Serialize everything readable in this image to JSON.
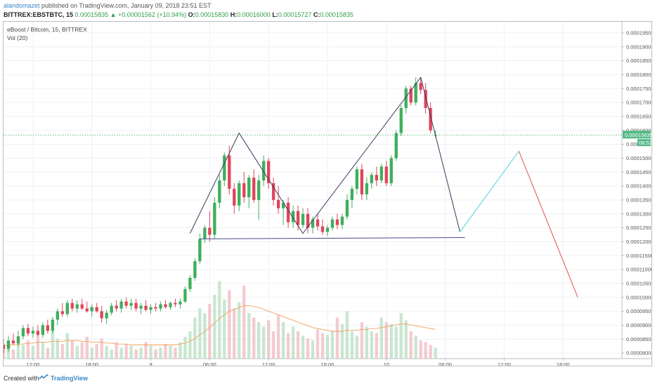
{
  "header": {
    "author": "alandomazet",
    "published_text": " published on TradingView.com, January 09, 2018 23:51 EST",
    "symbol": "BITTREX:EBSTBTC, 15",
    "last": "0.00015835",
    "change": "+0.00001562 (+10.94%)",
    "o_label": "O:",
    "o_value": "0.00015830",
    "h_label": "H:",
    "h_value": "0.00016000",
    "l_label": "L:",
    "l_value": "0.00015727",
    "c_label": "C:",
    "c_value": "0.00015835"
  },
  "legend": {
    "title": "eBoost / Bitcoin, 15, BITTREX",
    "vol": "Vol (20)"
  },
  "footer": {
    "created_with": "Created with",
    "brand": "TradingView"
  },
  "colors": {
    "up": "#26a69a",
    "up_body": "#3fae5c",
    "down": "#e0455b",
    "pattern_line": "#3a3a5c",
    "projection_up": "#5ed6e8",
    "projection_down": "#e06060",
    "price_line": "#2e9e4a",
    "ma_line": "#f0a060"
  },
  "chart_data": {
    "type": "candlestick",
    "price_axis": {
      "ticks": [
        8e-05,
        8.5e-05,
        9e-05,
        9.5e-05,
        0.0001,
        0.000105,
        0.00011,
        0.000115,
        0.00012,
        0.000125,
        0.00013,
        0.000135,
        0.00014,
        0.000145,
        0.00015,
        0.000155,
        0.00016,
        0.000165,
        0.00017,
        0.000175,
        0.00018,
        0.000185,
        0.00019,
        0.000195
      ],
      "tick_labels": [
        "0.00008000",
        "0.00008500",
        "0.00009000",
        "0.00009500",
        "0.00010000",
        "0.00010500",
        "0.00011000",
        "0.00011500",
        "0.00012000",
        "0.00012500",
        "0.00013000",
        "0.00013500",
        "0.00014000",
        "0.00014500",
        "0.00015000",
        "0.00015500",
        "0.00016000",
        "0.00016500",
        "0.00017000",
        "0.00017500",
        "0.00018000",
        "0.00018500",
        "0.00019000",
        "0.00019500"
      ],
      "range": [
        7.8e-05,
        0.000199
      ],
      "last_price": 0.00015835,
      "last_price_label": "0.00015835",
      "countdown_label": "08:52"
    },
    "time_axis": {
      "labels": [
        "12:00",
        "18:00",
        "9",
        "06:00",
        "12:00",
        "18:00",
        "10",
        "06:00",
        "12:00",
        "18:00"
      ],
      "positions": [
        12,
        18,
        24,
        30,
        36,
        42,
        48,
        54,
        60,
        66
      ],
      "range": [
        9,
        72
      ]
    },
    "candles": [
      {
        "t": 9.0,
        "o": 8.3e-05,
        "h": 8.5e-05,
        "l": 8e-05,
        "c": 8.15e-05
      },
      {
        "t": 9.5,
        "o": 8.15e-05,
        "h": 8.6e-05,
        "l": 8.05e-05,
        "c": 8.45e-05
      },
      {
        "t": 10.0,
        "o": 8.45e-05,
        "h": 8.7e-05,
        "l": 8.3e-05,
        "c": 8.35e-05
      },
      {
        "t": 10.5,
        "o": 8.35e-05,
        "h": 8.8e-05,
        "l": 8.25e-05,
        "c": 8.6e-05
      },
      {
        "t": 11.0,
        "o": 8.6e-05,
        "h": 9e-05,
        "l": 8.5e-05,
        "c": 8.9e-05
      },
      {
        "t": 11.5,
        "o": 8.9e-05,
        "h": 9.05e-05,
        "l": 8.6e-05,
        "c": 8.7e-05
      },
      {
        "t": 12.0,
        "o": 8.7e-05,
        "h": 8.95e-05,
        "l": 8.55e-05,
        "c": 8.8e-05
      },
      {
        "t": 12.5,
        "o": 8.8e-05,
        "h": 9e-05,
        "l": 8.6e-05,
        "c": 8.65e-05
      },
      {
        "t": 13.0,
        "o": 8.65e-05,
        "h": 9.1e-05,
        "l": 8.55e-05,
        "c": 9e-05
      },
      {
        "t": 13.5,
        "o": 9e-05,
        "h": 9.2e-05,
        "l": 8.7e-05,
        "c": 8.8e-05
      },
      {
        "t": 14.0,
        "o": 8.8e-05,
        "h": 9.3e-05,
        "l": 8.7e-05,
        "c": 9.2e-05
      },
      {
        "t": 14.5,
        "o": 9.2e-05,
        "h": 9.6e-05,
        "l": 9e-05,
        "c": 9.5e-05
      },
      {
        "t": 15.0,
        "o": 9.5e-05,
        "h": 9.8e-05,
        "l": 9.3e-05,
        "c": 9.4e-05
      },
      {
        "t": 15.5,
        "o": 9.4e-05,
        "h": 9.9e-05,
        "l": 9.3e-05,
        "c": 9.8e-05
      },
      {
        "t": 16.0,
        "o": 9.8e-05,
        "h": 9.95e-05,
        "l": 9.5e-05,
        "c": 9.6e-05
      },
      {
        "t": 16.5,
        "o": 9.6e-05,
        "h": 9.9e-05,
        "l": 9.45e-05,
        "c": 9.75e-05
      },
      {
        "t": 17.0,
        "o": 9.75e-05,
        "h": 9.95e-05,
        "l": 9.55e-05,
        "c": 9.6e-05
      },
      {
        "t": 17.5,
        "o": 9.6e-05,
        "h": 9.85e-05,
        "l": 9.45e-05,
        "c": 9.5e-05
      },
      {
        "t": 18.0,
        "o": 9.5e-05,
        "h": 9.75e-05,
        "l": 9.3e-05,
        "c": 9.65e-05
      },
      {
        "t": 18.5,
        "o": 9.65e-05,
        "h": 9.8e-05,
        "l": 9.45e-05,
        "c": 9.5e-05
      },
      {
        "t": 19.0,
        "o": 9.5e-05,
        "h": 9.7e-05,
        "l": 9.1e-05,
        "c": 9.25e-05
      },
      {
        "t": 19.5,
        "o": 9.25e-05,
        "h": 9.55e-05,
        "l": 9.05e-05,
        "c": 9.45e-05
      },
      {
        "t": 20.0,
        "o": 9.45e-05,
        "h": 9.8e-05,
        "l": 9.35e-05,
        "c": 9.7e-05
      },
      {
        "t": 20.5,
        "o": 9.7e-05,
        "h": 9.9e-05,
        "l": 9.5e-05,
        "c": 9.6e-05
      },
      {
        "t": 21.0,
        "o": 9.6e-05,
        "h": 9.95e-05,
        "l": 9.45e-05,
        "c": 9.85e-05
      },
      {
        "t": 21.5,
        "o": 9.85e-05,
        "h": 0.0001,
        "l": 9.6e-05,
        "c": 9.7e-05
      },
      {
        "t": 22.0,
        "o": 9.7e-05,
        "h": 9.95e-05,
        "l": 9.55e-05,
        "c": 9.8e-05
      },
      {
        "t": 22.5,
        "o": 9.8e-05,
        "h": 9.95e-05,
        "l": 9.5e-05,
        "c": 9.6e-05
      },
      {
        "t": 23.0,
        "o": 9.6e-05,
        "h": 9.8e-05,
        "l": 9.4e-05,
        "c": 9.7e-05
      },
      {
        "t": 23.5,
        "o": 9.7e-05,
        "h": 9.9e-05,
        "l": 9.5e-05,
        "c": 9.55e-05
      },
      {
        "t": 24.0,
        "o": 9.55e-05,
        "h": 9.75e-05,
        "l": 9.4e-05,
        "c": 9.65e-05
      },
      {
        "t": 24.5,
        "o": 9.65e-05,
        "h": 9.8e-05,
        "l": 9.5e-05,
        "c": 9.6e-05
      },
      {
        "t": 25.0,
        "o": 9.6e-05,
        "h": 9.85e-05,
        "l": 9.5e-05,
        "c": 9.75e-05
      },
      {
        "t": 25.5,
        "o": 9.75e-05,
        "h": 9.9e-05,
        "l": 9.6e-05,
        "c": 9.65e-05
      },
      {
        "t": 26.0,
        "o": 9.65e-05,
        "h": 9.85e-05,
        "l": 9.55e-05,
        "c": 9.8e-05
      },
      {
        "t": 26.5,
        "o": 9.8e-05,
        "h": 9.95e-05,
        "l": 9.65e-05,
        "c": 9.75e-05
      },
      {
        "t": 27.0,
        "o": 9.75e-05,
        "h": 9.95e-05,
        "l": 9.6e-05,
        "c": 9.85e-05
      },
      {
        "t": 27.5,
        "o": 9.85e-05,
        "h": 0.000104,
        "l": 9.8e-05,
        "c": 0.000103
      },
      {
        "t": 28.0,
        "o": 0.000103,
        "h": 0.000108,
        "l": 0.000102,
        "c": 0.000107
      },
      {
        "t": 28.5,
        "o": 0.000107,
        "h": 0.000114,
        "l": 0.000106,
        "c": 0.000113
      },
      {
        "t": 29.0,
        "o": 0.000113,
        "h": 0.000123,
        "l": 0.000112,
        "c": 0.000121
      },
      {
        "t": 29.5,
        "o": 0.000121,
        "h": 0.000126,
        "l": 0.0001195,
        "c": 0.000125
      },
      {
        "t": 30.0,
        "o": 0.000125,
        "h": 0.000131,
        "l": 0.00012,
        "c": 0.0001225
      },
      {
        "t": 30.5,
        "o": 0.0001225,
        "h": 0.000136,
        "l": 0.000121,
        "c": 0.000134
      },
      {
        "t": 31.0,
        "o": 0.000134,
        "h": 0.000144,
        "l": 0.000132,
        "c": 0.000142
      },
      {
        "t": 31.5,
        "o": 0.000142,
        "h": 0.000152,
        "l": 0.00014,
        "c": 0.000151
      },
      {
        "t": 32.0,
        "o": 0.000151,
        "h": 0.0001545,
        "l": 0.000137,
        "c": 0.000139
      },
      {
        "t": 32.5,
        "o": 0.000139,
        "h": 0.000141,
        "l": 0.00013,
        "c": 0.000133
      },
      {
        "t": 33.0,
        "o": 0.000133,
        "h": 0.000142,
        "l": 0.000131,
        "c": 0.000141
      },
      {
        "t": 33.5,
        "o": 0.000141,
        "h": 0.000145,
        "l": 0.000134,
        "c": 0.000136
      },
      {
        "t": 34.0,
        "o": 0.000136,
        "h": 0.000144,
        "l": 0.000132,
        "c": 0.000143
      },
      {
        "t": 34.5,
        "o": 0.000143,
        "h": 0.000146,
        "l": 0.000134,
        "c": 0.000135
      },
      {
        "t": 35.0,
        "o": 0.000135,
        "h": 0.000144,
        "l": 0.000128,
        "c": 0.000142
      },
      {
        "t": 35.5,
        "o": 0.000142,
        "h": 0.000151,
        "l": 0.00014,
        "c": 0.000149
      },
      {
        "t": 36.0,
        "o": 0.000149,
        "h": 0.00015,
        "l": 0.000139,
        "c": 0.000141
      },
      {
        "t": 36.5,
        "o": 0.000141,
        "h": 0.000143,
        "l": 0.000133,
        "c": 0.000135
      },
      {
        "t": 37.0,
        "o": 0.000135,
        "h": 0.00014,
        "l": 0.00013,
        "c": 0.000132
      },
      {
        "t": 37.5,
        "o": 0.000132,
        "h": 0.000135,
        "l": 0.000126,
        "c": 0.000134
      },
      {
        "t": 38.0,
        "o": 0.000134,
        "h": 0.000136,
        "l": 0.000125,
        "c": 0.000127
      },
      {
        "t": 38.5,
        "o": 0.000127,
        "h": 0.000133,
        "l": 0.000125,
        "c": 0.000131
      },
      {
        "t": 39.0,
        "o": 0.000131,
        "h": 0.000133,
        "l": 0.000124,
        "c": 0.000126
      },
      {
        "t": 39.5,
        "o": 0.000126,
        "h": 0.000132,
        "l": 0.000125,
        "c": 0.00013
      },
      {
        "t": 40.0,
        "o": 0.00013,
        "h": 0.000132,
        "l": 0.000123,
        "c": 0.000125
      },
      {
        "t": 40.5,
        "o": 0.000125,
        "h": 0.000129,
        "l": 0.000123,
        "c": 0.000128
      },
      {
        "t": 41.0,
        "o": 0.000128,
        "h": 0.00013,
        "l": 0.000124,
        "c": 0.0001255
      },
      {
        "t": 41.5,
        "o": 0.0001255,
        "h": 0.000128,
        "l": 0.0001225,
        "c": 0.0001235
      },
      {
        "t": 42.0,
        "o": 0.0001235,
        "h": 0.000126,
        "l": 0.000122,
        "c": 0.000125
      },
      {
        "t": 42.5,
        "o": 0.000125,
        "h": 0.000129,
        "l": 0.000124,
        "c": 0.000128
      },
      {
        "t": 43.0,
        "o": 0.000128,
        "h": 0.00013,
        "l": 0.0001245,
        "c": 0.000126
      },
      {
        "t": 43.5,
        "o": 0.000126,
        "h": 0.00013,
        "l": 0.0001245,
        "c": 0.000129
      },
      {
        "t": 44.0,
        "o": 0.000129,
        "h": 0.000137,
        "l": 0.000128,
        "c": 0.000135
      },
      {
        "t": 44.5,
        "o": 0.000135,
        "h": 0.00014,
        "l": 0.000132,
        "c": 0.000139
      },
      {
        "t": 45.0,
        "o": 0.000139,
        "h": 0.000147,
        "l": 0.000137,
        "c": 0.000146
      },
      {
        "t": 45.5,
        "o": 0.000146,
        "h": 0.000148,
        "l": 0.000135,
        "c": 0.000137
      },
      {
        "t": 46.0,
        "o": 0.000137,
        "h": 0.000143,
        "l": 0.000135,
        "c": 0.000141
      },
      {
        "t": 46.5,
        "o": 0.000141,
        "h": 0.000145,
        "l": 0.000139,
        "c": 0.000144
      },
      {
        "t": 47.0,
        "o": 0.000144,
        "h": 0.000147,
        "l": 0.00014,
        "c": 0.000142
      },
      {
        "t": 47.5,
        "o": 0.000142,
        "h": 0.000148,
        "l": 0.000141,
        "c": 0.000147
      },
      {
        "t": 48.0,
        "o": 0.000147,
        "h": 0.000149,
        "l": 0.00014,
        "c": 0.000141
      },
      {
        "t": 48.5,
        "o": 0.000141,
        "h": 0.000151,
        "l": 0.00014,
        "c": 0.00015
      },
      {
        "t": 49.0,
        "o": 0.00015,
        "h": 0.00016,
        "l": 0.000149,
        "c": 0.000159
      },
      {
        "t": 49.5,
        "o": 0.000159,
        "h": 0.000169,
        "l": 0.000158,
        "c": 0.000168
      },
      {
        "t": 50.0,
        "o": 0.000168,
        "h": 0.000176,
        "l": 0.000166,
        "c": 0.000175
      },
      {
        "t": 50.5,
        "o": 0.000175,
        "h": 0.000176,
        "l": 0.000169,
        "c": 0.00017
      },
      {
        "t": 51.0,
        "o": 0.00017,
        "h": 0.000179,
        "l": 0.000169,
        "c": 0.000177
      },
      {
        "t": 51.5,
        "o": 0.000177,
        "h": 0.000179,
        "l": 0.000173,
        "c": 0.0001745
      },
      {
        "t": 52.0,
        "o": 0.0001745,
        "h": 0.000177,
        "l": 0.000166,
        "c": 0.000168
      },
      {
        "t": 52.5,
        "o": 0.000168,
        "h": 0.00017,
        "l": 0.000159,
        "c": 0.00016
      },
      {
        "t": 53.0,
        "o": 0.0001583,
        "h": 0.00016,
        "l": 0.0001573,
        "c": 0.00015835
      }
    ],
    "volume_scale_max": 100,
    "volumes": [
      12,
      18,
      10,
      22,
      15,
      20,
      14,
      25,
      18,
      12,
      30,
      22,
      16,
      28,
      20,
      14,
      18,
      24,
      12,
      16,
      22,
      14,
      10,
      18,
      12,
      16,
      14,
      10,
      12,
      18,
      14,
      10,
      12,
      16,
      14,
      12,
      18,
      24,
      30,
      45,
      55,
      50,
      60,
      70,
      85,
      65,
      75,
      55,
      62,
      80,
      50,
      45,
      40,
      35,
      42,
      30,
      48,
      40,
      28,
      35,
      30,
      25,
      22,
      20,
      32,
      28,
      26,
      30,
      45,
      38,
      52,
      30,
      25,
      40,
      35,
      30,
      28,
      45,
      40,
      38,
      35,
      50,
      42,
      30,
      25,
      20,
      18,
      15,
      12
    ],
    "volume_ma": [
      14,
      15,
      15,
      16,
      16,
      17,
      17,
      18,
      18,
      18,
      19,
      19,
      19,
      20,
      20,
      20,
      19,
      19,
      18,
      18,
      18,
      17,
      17,
      16,
      16,
      16,
      15,
      15,
      15,
      15,
      15,
      15,
      15,
      15,
      15,
      15,
      16,
      17,
      19,
      22,
      26,
      30,
      34,
      39,
      44,
      48,
      52,
      54,
      56,
      58,
      58,
      57,
      56,
      54,
      52,
      50,
      48,
      46,
      44,
      42,
      40,
      38,
      36,
      34,
      33,
      32,
      31,
      30,
      30,
      30,
      31,
      31,
      31,
      32,
      32,
      33,
      33,
      34,
      35,
      36,
      37,
      38,
      38,
      37,
      36,
      35,
      34,
      33,
      32
    ],
    "pattern": {
      "zigzag": [
        {
          "t": 28.0,
          "p": 0.000123
        },
        {
          "t": 33.0,
          "p": 0.000159
        },
        {
          "t": 39.5,
          "p": 0.000123
        },
        {
          "t": 51.5,
          "p": 0.000179
        },
        {
          "t": 55.5,
          "p": 0.0001235
        }
      ],
      "neckline": [
        {
          "t": 29.0,
          "p": 0.000121
        },
        {
          "t": 56.0,
          "p": 0.0001215
        }
      ],
      "projection_up": [
        {
          "t": 55.5,
          "p": 0.0001235
        },
        {
          "t": 61.5,
          "p": 0.0001525
        }
      ],
      "projection_down": [
        {
          "t": 61.5,
          "p": 0.0001525
        },
        {
          "t": 67.5,
          "p": 0.0001
        }
      ]
    }
  }
}
